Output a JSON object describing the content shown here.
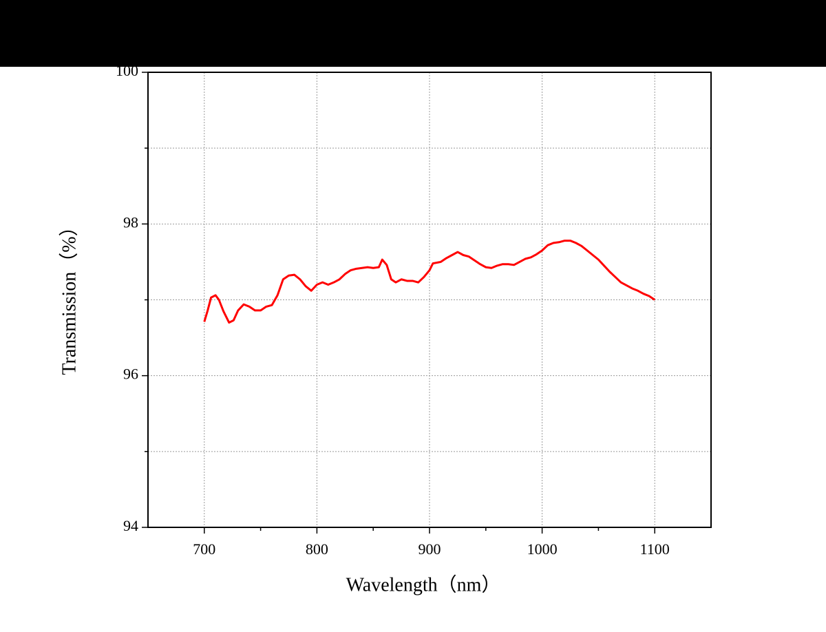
{
  "chart_data": {
    "type": "line",
    "x_label": "Wavelength（nm）",
    "y_label": "Transmission（%）",
    "x": [
      700,
      703,
      706,
      710,
      713,
      717,
      722,
      726,
      730,
      735,
      740,
      745,
      750,
      755,
      760,
      765,
      770,
      775,
      780,
      785,
      790,
      795,
      800,
      805,
      810,
      815,
      820,
      825,
      830,
      835,
      840,
      845,
      850,
      855,
      858,
      862,
      866,
      870,
      875,
      880,
      885,
      890,
      895,
      900,
      903,
      910,
      915,
      920,
      925,
      930,
      935,
      940,
      945,
      950,
      955,
      960,
      965,
      970,
      975,
      980,
      985,
      990,
      995,
      1000,
      1005,
      1010,
      1015,
      1020,
      1025,
      1030,
      1035,
      1040,
      1045,
      1050,
      1055,
      1060,
      1065,
      1070,
      1075,
      1080,
      1085,
      1090,
      1095,
      1100
    ],
    "series": [
      {
        "name": "Transmission",
        "color": "#ff0000",
        "values": [
          96.71,
          96.86,
          97.03,
          97.06,
          97.0,
          96.85,
          96.7,
          96.73,
          96.86,
          96.94,
          96.91,
          96.86,
          96.86,
          96.91,
          96.93,
          97.06,
          97.27,
          97.32,
          97.33,
          97.27,
          97.18,
          97.12,
          97.2,
          97.23,
          97.2,
          97.23,
          97.27,
          97.34,
          97.39,
          97.41,
          97.42,
          97.43,
          97.42,
          97.43,
          97.53,
          97.46,
          97.27,
          97.23,
          97.27,
          97.25,
          97.25,
          97.23,
          97.3,
          97.39,
          97.48,
          97.5,
          97.55,
          97.59,
          97.63,
          97.59,
          97.57,
          97.52,
          97.47,
          97.43,
          97.42,
          97.45,
          97.47,
          97.47,
          97.46,
          97.5,
          97.54,
          97.56,
          97.6,
          97.65,
          97.72,
          97.75,
          97.76,
          97.78,
          97.78,
          97.75,
          97.71,
          97.65,
          97.59,
          97.53,
          97.45,
          97.37,
          97.3,
          97.23,
          97.19,
          97.15,
          97.12,
          97.08,
          97.05,
          97.0
        ]
      }
    ],
    "xlim": [
      650,
      1150
    ],
    "xticks": [
      700,
      800,
      900,
      1000,
      1100
    ],
    "xminor_ticks": [
      750,
      850,
      950,
      1050
    ],
    "ylim": [
      94,
      100
    ],
    "yticks": [
      94,
      96,
      98,
      100
    ],
    "yminor_ticks": [
      95,
      97,
      99
    ],
    "grid": true
  }
}
